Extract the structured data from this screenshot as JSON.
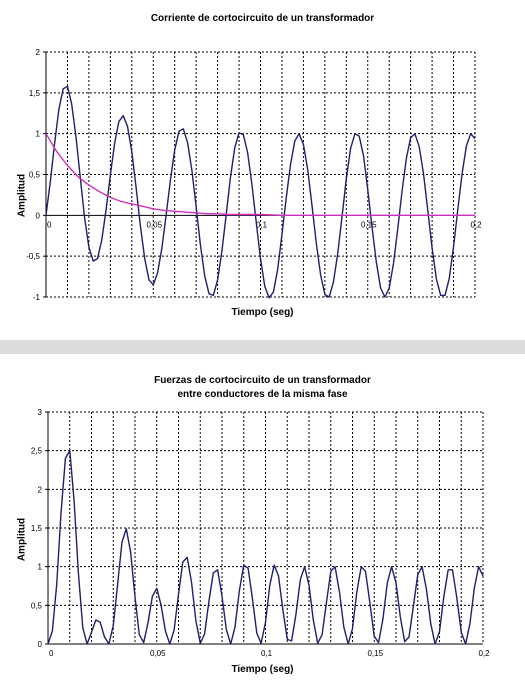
{
  "chart_data": [
    {
      "type": "line",
      "title": "Corriente de cortocircuito de un transformador",
      "xlabel": "Tiempo (seg)",
      "ylabel": "Amplitud",
      "xlim": [
        0,
        0.2
      ],
      "ylim": [
        -1,
        2
      ],
      "x_ticks": [
        "0",
        "0,05",
        "0,1",
        "0,15",
        "0,2"
      ],
      "y_ticks": [
        "-1",
        "-0,5",
        "0",
        "0,5",
        "1",
        "1,5",
        "2"
      ],
      "grid": true,
      "series": [
        {
          "color": "#1f1f6e",
          "x": [
            0,
            0.002,
            0.004,
            0.006,
            0.008,
            0.01,
            0.012,
            0.014,
            0.016,
            0.018,
            0.02,
            0.022,
            0.024,
            0.026,
            0.028,
            0.03,
            0.032,
            0.034,
            0.036,
            0.038,
            0.04,
            0.042,
            0.044,
            0.046,
            0.048,
            0.05,
            0.052,
            0.054,
            0.056,
            0.058,
            0.06,
            0.062,
            0.064,
            0.066,
            0.068,
            0.07,
            0.072,
            0.074,
            0.076,
            0.078,
            0.08,
            0.082,
            0.084,
            0.086,
            0.088,
            0.09,
            0.092,
            0.094,
            0.096,
            0.098,
            0.1,
            0.102,
            0.104,
            0.106,
            0.108,
            0.11,
            0.112,
            0.114,
            0.116,
            0.118,
            0.12,
            0.122,
            0.124,
            0.126,
            0.128,
            0.13,
            0.132,
            0.134,
            0.136,
            0.138,
            0.14,
            0.142,
            0.144,
            0.146,
            0.148,
            0.15,
            0.152,
            0.154,
            0.156,
            0.158,
            0.16,
            0.162,
            0.164,
            0.166,
            0.168,
            0.17,
            0.172,
            0.174,
            0.176,
            0.178,
            0.18,
            0.182,
            0.184,
            0.186,
            0.188,
            0.19,
            0.192,
            0.194,
            0.196,
            0.198,
            0.2
          ],
          "values": [
            0,
            0.41,
            0.88,
            1.3,
            1.55,
            1.58,
            1.36,
            0.96,
            0.46,
            -0.03,
            -0.39,
            -0.56,
            -0.53,
            -0.3,
            0.07,
            0.49,
            0.88,
            1.15,
            1.22,
            1.09,
            0.78,
            0.34,
            -0.13,
            -0.53,
            -0.79,
            -0.85,
            -0.71,
            -0.41,
            0.0,
            0.43,
            0.8,
            1.03,
            1.06,
            0.89,
            0.55,
            0.1,
            -0.36,
            -0.74,
            -0.96,
            -0.98,
            -0.79,
            -0.44,
            0.01,
            0.47,
            0.83,
            1.01,
            0.99,
            0.77,
            0.38,
            -0.08,
            -0.53,
            -0.87,
            -1.01,
            -0.94,
            -0.66,
            -0.24,
            0.21,
            0.62,
            0.91,
            1.0,
            0.87,
            0.56,
            0.12,
            -0.34,
            -0.73,
            -0.97,
            -1.0,
            -0.82,
            -0.47,
            -0.02,
            0.45,
            0.82,
            1.0,
            0.97,
            0.73,
            0.32,
            -0.14,
            -0.57,
            -0.89,
            -1.0,
            -0.89,
            -0.59,
            -0.16,
            0.3,
            0.7,
            0.95,
            1.0,
            0.84,
            0.51,
            0.06,
            -0.4,
            -0.78,
            -0.98,
            -0.98,
            -0.77,
            -0.39,
            0.07,
            0.51,
            0.85,
            1.0,
            0.94
          ]
        },
        {
          "color": "#d030c0",
          "x": [
            0,
            0.005,
            0.01,
            0.015,
            0.02,
            0.025,
            0.03,
            0.035,
            0.04,
            0.045,
            0.05,
            0.055,
            0.06,
            0.065,
            0.07,
            0.075,
            0.08,
            0.085,
            0.09,
            0.095,
            0.1,
            0.11,
            0.12,
            0.13,
            0.14,
            0.15,
            0.16,
            0.17,
            0.18,
            0.19,
            0.2
          ],
          "values": [
            1,
            0.78,
            0.61,
            0.47,
            0.37,
            0.29,
            0.22,
            0.17,
            0.14,
            0.11,
            0.08,
            0.06,
            0.05,
            0.04,
            0.03,
            0.02,
            0.02,
            0.01,
            0.01,
            0.01,
            0.01,
            0,
            0,
            0,
            0,
            0,
            0,
            0,
            0,
            0,
            0
          ]
        }
      ]
    },
    {
      "type": "line",
      "title": "Fuerzas de cortocircuito de un transformador entre conductores de la misma fase",
      "title_lines": [
        "Fuerzas de cortocircuito de un transformador",
        "entre conductores de la misma fase"
      ],
      "xlabel": "Tiempo (seg)",
      "ylabel": "Amplitud",
      "xlim": [
        0,
        0.2
      ],
      "ylim": [
        0,
        3
      ],
      "x_ticks": [
        "0",
        "0,05",
        "0,1",
        "0,15",
        "0,2"
      ],
      "y_ticks": [
        "0",
        "0,5",
        "1",
        "1,5",
        "2",
        "2,5",
        "3"
      ],
      "grid": true,
      "series": [
        {
          "color": "#1f1f6e",
          "x": [
            0,
            0.002,
            0.004,
            0.006,
            0.008,
            0.01,
            0.012,
            0.014,
            0.016,
            0.018,
            0.02,
            0.022,
            0.024,
            0.026,
            0.028,
            0.03,
            0.032,
            0.034,
            0.036,
            0.038,
            0.04,
            0.042,
            0.044,
            0.046,
            0.048,
            0.05,
            0.052,
            0.054,
            0.056,
            0.058,
            0.06,
            0.062,
            0.064,
            0.066,
            0.068,
            0.07,
            0.072,
            0.074,
            0.076,
            0.078,
            0.08,
            0.082,
            0.084,
            0.086,
            0.088,
            0.09,
            0.092,
            0.094,
            0.096,
            0.098,
            0.1,
            0.102,
            0.104,
            0.106,
            0.108,
            0.11,
            0.112,
            0.114,
            0.116,
            0.118,
            0.12,
            0.122,
            0.124,
            0.126,
            0.128,
            0.13,
            0.132,
            0.134,
            0.136,
            0.138,
            0.14,
            0.142,
            0.144,
            0.146,
            0.148,
            0.15,
            0.152,
            0.154,
            0.156,
            0.158,
            0.16,
            0.162,
            0.164,
            0.166,
            0.168,
            0.17,
            0.172,
            0.174,
            0.176,
            0.178,
            0.18,
            0.182,
            0.184,
            0.186,
            0.188,
            0.19,
            0.192,
            0.194,
            0.196,
            0.198,
            0.2
          ],
          "values": [
            0,
            0.17,
            0.77,
            1.69,
            2.4,
            2.5,
            1.85,
            0.92,
            0.21,
            0.0,
            0.15,
            0.31,
            0.28,
            0.09,
            0.0,
            0.24,
            0.77,
            1.32,
            1.49,
            1.19,
            0.61,
            0.12,
            0.02,
            0.28,
            0.62,
            0.72,
            0.5,
            0.17,
            0.0,
            0.18,
            0.64,
            1.06,
            1.12,
            0.79,
            0.3,
            0.01,
            0.13,
            0.55,
            0.92,
            0.96,
            0.62,
            0.19,
            0.0,
            0.22,
            0.69,
            1.02,
            0.98,
            0.59,
            0.14,
            0.01,
            0.28,
            0.76,
            1.02,
            0.88,
            0.44,
            0.06,
            0.04,
            0.38,
            0.83,
            1.0,
            0.76,
            0.31,
            0.01,
            0.12,
            0.53,
            0.94,
            1.0,
            0.67,
            0.22,
            0.0,
            0.2,
            0.67,
            1.0,
            0.94,
            0.53,
            0.1,
            0.02,
            0.32,
            0.79,
            1.0,
            0.79,
            0.35,
            0.03,
            0.09,
            0.49,
            0.9,
            1.0,
            0.71,
            0.26,
            0.0,
            0.16,
            0.61,
            0.96,
            0.96,
            0.59,
            0.15,
            0.0,
            0.26,
            0.72,
            1.0,
            0.88
          ]
        }
      ]
    }
  ]
}
